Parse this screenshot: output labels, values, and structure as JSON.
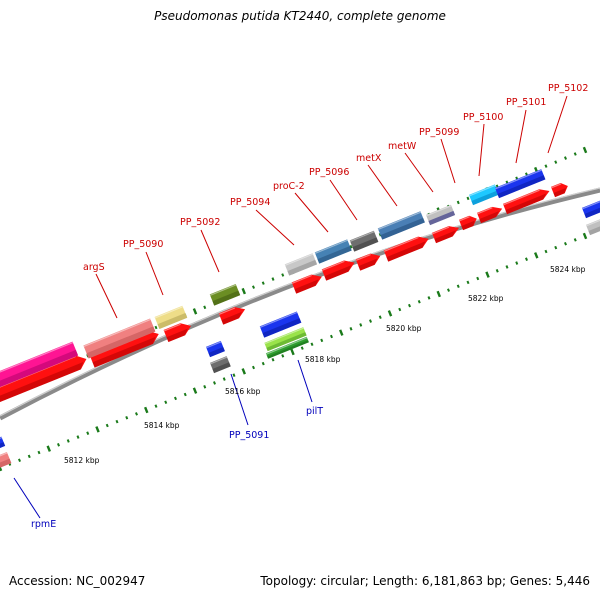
{
  "title": "Pseudomonas putida KT2440, complete genome",
  "footer": {
    "accession": "Accession: NC_002947",
    "summary": "Topology: circular; Length: 6,181,863 bp; Genes: 5,446"
  },
  "colors": {
    "forward_label": "#cc0000",
    "reverse_label": "#0000bb",
    "backbone": "#808080",
    "tick": "#1a7a1a",
    "cds": "#ff0000"
  },
  "forward_genes": [
    {
      "name": "argS"
    },
    {
      "name": "PP_5090"
    },
    {
      "name": "PP_5092"
    },
    {
      "name": "PP_5094"
    },
    {
      "name": "proC-2"
    },
    {
      "name": "PP_5096"
    },
    {
      "name": "metX"
    },
    {
      "name": "metW"
    },
    {
      "name": "PP_5099"
    },
    {
      "name": "PP_5100"
    },
    {
      "name": "PP_5101"
    },
    {
      "name": "PP_5102"
    }
  ],
  "reverse_genes": [
    {
      "name": "PP_5091"
    },
    {
      "name": "pilT"
    },
    {
      "name": "rpmE"
    }
  ],
  "bp_labels": [
    "5812 kbp",
    "5814 kbp",
    "5816 kbp",
    "5818 kbp",
    "5820 kbp",
    "5822 kbp",
    "5824 kbp"
  ]
}
